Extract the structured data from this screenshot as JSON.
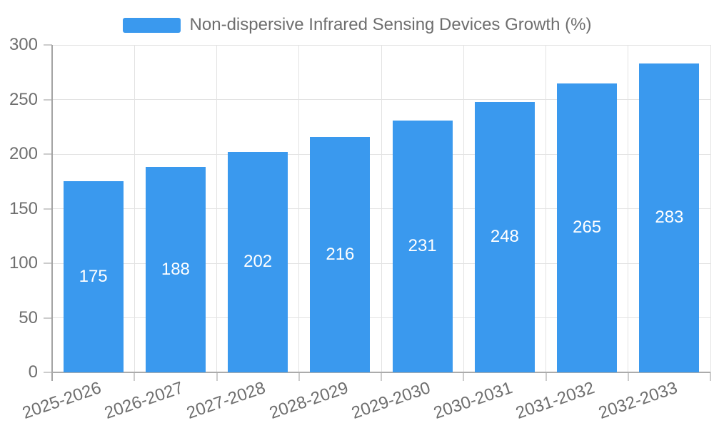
{
  "chart_data": {
    "type": "bar",
    "title": "",
    "legend": "Non-dispersive Infrared Sensing Devices Growth (%)",
    "legend_position": "top-center",
    "categories": [
      "2025-2026",
      "2026-2027",
      "2027-2028",
      "2028-2029",
      "2029-2030",
      "2030-2031",
      "2031-2032",
      "2032-2033"
    ],
    "series": [
      {
        "name": "Non-dispersive Infrared Sensing Devices Growth (%)",
        "values": [
          175,
          188,
          202,
          216,
          231,
          248,
          265,
          283
        ]
      }
    ],
    "value_labels_shown": true,
    "xlabel": "",
    "ylabel": "",
    "ylim": [
      0,
      300
    ],
    "yticks": [
      0,
      50,
      100,
      150,
      200,
      250,
      300
    ],
    "grid": true,
    "bar_color": "#3A99EE",
    "value_label_color": "#ffffff",
    "axis_text_color": "#6e6e6e"
  }
}
